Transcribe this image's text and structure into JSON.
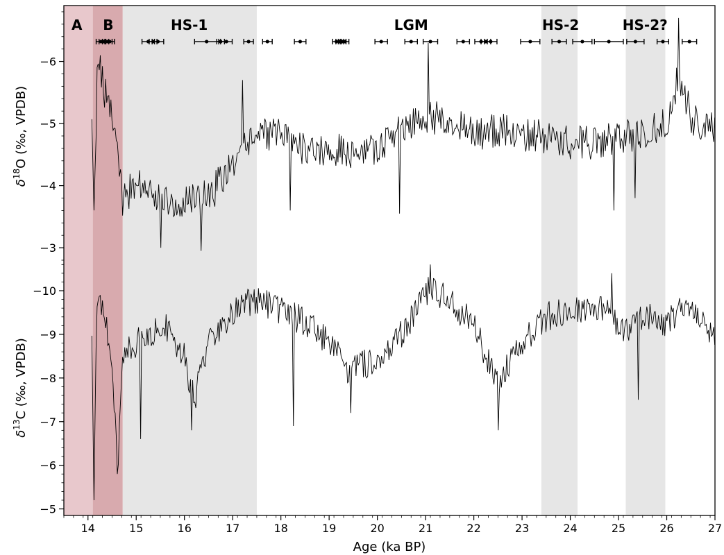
{
  "chart_data": {
    "type": "line",
    "title": "",
    "x": {
      "label": "Age (ka BP)",
      "range": [
        13.5,
        27
      ],
      "ticks": [
        14,
        15,
        16,
        17,
        18,
        19,
        20,
        21,
        22,
        23,
        24,
        25,
        26,
        27
      ],
      "tick_labels": [
        "14",
        "15",
        "16",
        "17",
        "18",
        "19",
        "20",
        "21",
        "22",
        "23",
        "24",
        "25",
        "26",
        "27"
      ],
      "minor_step": 0.2
    },
    "panels": [
      {
        "id": "d18O",
        "ylabel_delta": "δ",
        "ylabel_sup": "18",
        "ylabel_rest": "O (‰, VPDB)",
        "range": [
          -2.8,
          -6.9
        ],
        "inverted": true,
        "ticks": [
          -3,
          -4,
          -5,
          -6
        ],
        "tick_labels": [
          "−3",
          "−4",
          "−5",
          "−6"
        ],
        "series": {
          "anchors": [
            [
              14.08,
              -4.8
            ],
            [
              14.12,
              -3.5
            ],
            [
              14.2,
              -6.0
            ],
            [
              14.35,
              -5.5
            ],
            [
              14.5,
              -5.3
            ],
            [
              14.62,
              -4.5
            ],
            [
              14.72,
              -3.7
            ],
            [
              15.0,
              -4.1
            ],
            [
              15.5,
              -3.8
            ],
            [
              15.8,
              -3.7
            ],
            [
              16.2,
              -3.8
            ],
            [
              16.6,
              -3.9
            ],
            [
              16.9,
              -4.3
            ],
            [
              17.2,
              -4.6
            ],
            [
              17.5,
              -4.8
            ],
            [
              18.0,
              -4.8
            ],
            [
              18.5,
              -4.6
            ],
            [
              19.0,
              -4.6
            ],
            [
              19.5,
              -4.5
            ],
            [
              20.0,
              -4.6
            ],
            [
              20.5,
              -4.9
            ],
            [
              21.0,
              -5.1
            ],
            [
              21.4,
              -5.1
            ],
            [
              22.0,
              -4.8
            ],
            [
              22.5,
              -4.9
            ],
            [
              23.0,
              -4.8
            ],
            [
              23.5,
              -4.8
            ],
            [
              24.0,
              -4.7
            ],
            [
              24.5,
              -4.7
            ],
            [
              25.0,
              -4.8
            ],
            [
              25.5,
              -4.8
            ],
            [
              26.0,
              -5.0
            ],
            [
              26.25,
              -5.8
            ],
            [
              26.5,
              -5.1
            ],
            [
              27.0,
              -4.9
            ]
          ],
          "spikes": [
            [
              14.25,
              -6.1
            ],
            [
              15.5,
              -3.0
            ],
            [
              16.35,
              -2.95
            ],
            [
              17.2,
              -5.7
            ],
            [
              18.2,
              -3.6
            ],
            [
              20.45,
              -3.55
            ],
            [
              21.05,
              -6.3
            ],
            [
              24.9,
              -3.6
            ],
            [
              25.35,
              -3.8
            ],
            [
              26.25,
              -6.7
            ]
          ],
          "noise": 0.28
        }
      },
      {
        "id": "d13C",
        "ylabel_delta": "δ",
        "ylabel_sup": "13",
        "ylabel_rest": "C (‰, VPDB)",
        "range": [
          -4.85,
          -10.7
        ],
        "inverted": true,
        "ticks": [
          -5,
          -6,
          -7,
          -8,
          -9,
          -10
        ],
        "tick_labels": [
          "−5",
          "−6",
          "−7",
          "−8",
          "−9",
          "−10"
        ],
        "series": {
          "anchors": [
            [
              14.08,
              -9.0
            ],
            [
              14.12,
              -5.2
            ],
            [
              14.18,
              -9.8
            ],
            [
              14.35,
              -9.5
            ],
            [
              14.55,
              -7.5
            ],
            [
              14.62,
              -6.0
            ],
            [
              14.72,
              -8.5
            ],
            [
              15.0,
              -8.8
            ],
            [
              15.3,
              -9.0
            ],
            [
              15.6,
              -9.2
            ],
            [
              16.0,
              -8.5
            ],
            [
              16.2,
              -7.5
            ],
            [
              16.5,
              -8.8
            ],
            [
              17.0,
              -9.5
            ],
            [
              17.5,
              -9.8
            ],
            [
              18.0,
              -9.5
            ],
            [
              18.5,
              -9.3
            ],
            [
              19.0,
              -8.8
            ],
            [
              19.4,
              -8.2
            ],
            [
              20.0,
              -8.4
            ],
            [
              20.5,
              -9.0
            ],
            [
              21.0,
              -10.0
            ],
            [
              21.5,
              -9.8
            ],
            [
              22.0,
              -9.2
            ],
            [
              22.5,
              -7.9
            ],
            [
              22.8,
              -8.4
            ],
            [
              23.0,
              -8.8
            ],
            [
              23.5,
              -9.4
            ],
            [
              24.0,
              -9.6
            ],
            [
              24.5,
              -9.5
            ],
            [
              24.8,
              -9.8
            ],
            [
              25.0,
              -9.0
            ],
            [
              25.5,
              -9.4
            ],
            [
              26.0,
              -9.3
            ],
            [
              26.5,
              -9.7
            ],
            [
              27.0,
              -9.0
            ]
          ],
          "spikes": [
            [
              14.12,
              -5.2
            ],
            [
              14.6,
              -5.8
            ],
            [
              15.1,
              -6.6
            ],
            [
              16.15,
              -6.8
            ],
            [
              18.25,
              -6.9
            ],
            [
              19.45,
              -7.2
            ],
            [
              21.1,
              -10.6
            ],
            [
              22.5,
              -6.8
            ],
            [
              24.85,
              -10.4
            ],
            [
              25.4,
              -7.5
            ]
          ],
          "noise": 0.35
        }
      }
    ],
    "bands": [
      {
        "label": "A",
        "x0": 13.5,
        "x1": 14.1,
        "color": "#e8c8cc"
      },
      {
        "label": "B",
        "x0": 14.1,
        "x1": 14.72,
        "color": "#d8aaae"
      },
      {
        "label": "HS-1",
        "x0": 14.72,
        "x1": 17.5,
        "color": "#e6e6e6"
      },
      {
        "label": "HS-2",
        "x0": 23.4,
        "x1": 24.15,
        "color": "#e6e6e6"
      },
      {
        "label": "HS-2?",
        "x0": 25.15,
        "x1": 25.97,
        "color": "#e6e6e6"
      }
    ],
    "band_labels": [
      {
        "text": "A",
        "x": 13.77
      },
      {
        "text": "B",
        "x": 14.42
      },
      {
        "text": "HS-1",
        "x": 16.1
      },
      {
        "text": "LGM",
        "x": 20.7
      },
      {
        "text": "HS-2",
        "x": 23.8
      },
      {
        "text": "HS-2?",
        "x": 25.55
      }
    ],
    "dates": {
      "y": -6.32,
      "points": [
        [
          14.27,
          0.1
        ],
        [
          14.33,
          0.1
        ],
        [
          14.4,
          0.1
        ],
        [
          14.45,
          0.1
        ],
        [
          15.25,
          0.13
        ],
        [
          15.35,
          0.08
        ],
        [
          15.45,
          0.12
        ],
        [
          16.46,
          0.25
        ],
        [
          16.75,
          0.08
        ],
        [
          16.87,
          0.12
        ],
        [
          17.33,
          0.1
        ],
        [
          17.72,
          0.1
        ],
        [
          18.4,
          0.12
        ],
        [
          19.15,
          0.08
        ],
        [
          19.22,
          0.08
        ],
        [
          19.27,
          0.08
        ],
        [
          19.33,
          0.08
        ],
        [
          20.08,
          0.13
        ],
        [
          20.7,
          0.13
        ],
        [
          21.1,
          0.15
        ],
        [
          21.78,
          0.13
        ],
        [
          22.15,
          0.13
        ],
        [
          22.25,
          0.1
        ],
        [
          22.35,
          0.13
        ],
        [
          23.17,
          0.2
        ],
        [
          23.77,
          0.15
        ],
        [
          24.25,
          0.2
        ],
        [
          24.8,
          0.3
        ],
        [
          25.35,
          0.18
        ],
        [
          25.92,
          0.12
        ],
        [
          26.47,
          0.15
        ]
      ]
    },
    "axis_color": "#000000",
    "line_color": "#000000",
    "errorbar_color": "#000000"
  }
}
